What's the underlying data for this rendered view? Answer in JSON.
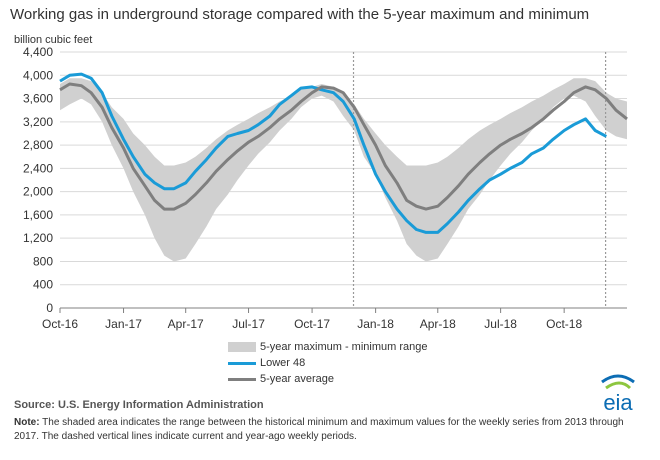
{
  "header": {
    "title": "Working gas in underground  storage compared with the 5-year maximum and minimum",
    "unit_label": "billion cubic feet"
  },
  "legend": {
    "band": "5-year maximum - minimum range",
    "lower48": "Lower 48",
    "avg": "5-year average"
  },
  "footer": {
    "source": "Source:  U.S. Energy Information Administration",
    "note_label": "Note:",
    "note_text": " The shaded area indicates the range between the historical minimum and maximum values for the weekly series from 2013 through 2017. The dashed vertical lines indicate current and year-ago weekly periods.",
    "logo_text": "eia"
  },
  "colors": {
    "band": "#d0d0d0",
    "lower48": "#1a9bd7",
    "avg": "#7f7f7f",
    "axis": "#808080",
    "grid": "#d9d9d9",
    "logo_blue": "#0c6db4",
    "logo_green": "#8dc63f"
  },
  "chart_data": {
    "type": "line",
    "title": "Working gas in underground  storage compared with the 5-year maximum and minimum",
    "ylabel": "billion cubic feet",
    "ylim": [
      0,
      4400
    ],
    "yticks": [
      0,
      400,
      800,
      1200,
      1600,
      2000,
      2400,
      2800,
      3200,
      3600,
      4000,
      4400
    ],
    "ytick_labels": [
      "0",
      "400",
      "800",
      "1,200",
      "1,600",
      "2,000",
      "2,400",
      "2,800",
      "3,200",
      "3,600",
      "4,000",
      "4,400"
    ],
    "xlim": [
      "2016-10-01",
      "2018-12-31"
    ],
    "xticks": [
      "2016-10-01",
      "2017-01-01",
      "2017-04-01",
      "2017-07-01",
      "2017-10-01",
      "2018-01-01",
      "2018-04-01",
      "2018-07-01",
      "2018-10-01"
    ],
    "xtick_labels": [
      "Oct-16",
      "Jan-17",
      "Apr-17",
      "Jul-17",
      "Oct-17",
      "Jan-18",
      "Apr-18",
      "Jul-18",
      "Oct-18"
    ],
    "grid": "horizontal",
    "legend_position": "bottom",
    "reference_lines": [
      "2017-11-30",
      "2018-11-30"
    ],
    "x": [
      "2016-10-01",
      "2016-10-15",
      "2016-11-01",
      "2016-11-15",
      "2016-12-01",
      "2016-12-15",
      "2017-01-01",
      "2017-01-15",
      "2017-02-01",
      "2017-02-15",
      "2017-03-01",
      "2017-03-15",
      "2017-04-01",
      "2017-04-15",
      "2017-05-01",
      "2017-05-15",
      "2017-06-01",
      "2017-06-15",
      "2017-07-01",
      "2017-07-15",
      "2017-08-01",
      "2017-08-15",
      "2017-09-01",
      "2017-09-15",
      "2017-10-01",
      "2017-10-15",
      "2017-11-01",
      "2017-11-15",
      "2017-12-01",
      "2017-12-15",
      "2018-01-01",
      "2018-01-15",
      "2018-02-01",
      "2018-02-15",
      "2018-03-01",
      "2018-03-15",
      "2018-04-01",
      "2018-04-15",
      "2018-05-01",
      "2018-05-15",
      "2018-06-01",
      "2018-06-15",
      "2018-07-01",
      "2018-07-15",
      "2018-08-01",
      "2018-08-15",
      "2018-09-01",
      "2018-09-15",
      "2018-10-01",
      "2018-10-15",
      "2018-11-01",
      "2018-11-15",
      "2018-12-01",
      "2018-12-15",
      "2018-12-31"
    ],
    "series": [
      {
        "name": "5-year maximum - minimum range",
        "role": "band",
        "upper": [
          3850,
          3950,
          3950,
          3900,
          3700,
          3450,
          3250,
          3000,
          2800,
          2600,
          2450,
          2450,
          2500,
          2600,
          2750,
          2900,
          3050,
          3150,
          3250,
          3350,
          3450,
          3550,
          3650,
          3750,
          3800,
          3850,
          3800,
          3700,
          3500,
          3250,
          3000,
          2800,
          2600,
          2450,
          2450,
          2450,
          2500,
          2600,
          2750,
          2900,
          3050,
          3150,
          3250,
          3350,
          3450,
          3550,
          3650,
          3750,
          3850,
          3950,
          3950,
          3900,
          3700,
          3600,
          3550
        ],
        "lower": [
          3400,
          3500,
          3600,
          3500,
          3200,
          2800,
          2400,
          2000,
          1600,
          1200,
          900,
          800,
          850,
          1100,
          1400,
          1700,
          1950,
          2200,
          2450,
          2650,
          2850,
          3050,
          3250,
          3450,
          3600,
          3650,
          3550,
          3300,
          3050,
          2600,
          2300,
          1900,
          1500,
          1100,
          900,
          800,
          850,
          1100,
          1400,
          1700,
          1950,
          2200,
          2450,
          2650,
          2850,
          3050,
          3250,
          3450,
          3600,
          3650,
          3550,
          3300,
          3050,
          2950,
          2900
        ]
      },
      {
        "name": "Lower 48",
        "values": [
          3900,
          4000,
          4020,
          3950,
          3700,
          3300,
          2900,
          2600,
          2300,
          2150,
          2050,
          2050,
          2150,
          2350,
          2550,
          2750,
          2950,
          3000,
          3050,
          3150,
          3300,
          3500,
          3650,
          3780,
          3800,
          3750,
          3700,
          3550,
          3250,
          2800,
          2300,
          2000,
          1700,
          1500,
          1350,
          1300,
          1300,
          1450,
          1650,
          1850,
          2050,
          2200,
          2300,
          2400,
          2500,
          2650,
          2750,
          2900,
          3050,
          3150,
          3250,
          3050,
          2950,
          null,
          null
        ]
      },
      {
        "name": "5-year average",
        "values": [
          3750,
          3850,
          3820,
          3700,
          3450,
          3100,
          2750,
          2400,
          2100,
          1850,
          1700,
          1700,
          1800,
          1950,
          2150,
          2350,
          2550,
          2700,
          2850,
          2950,
          3100,
          3250,
          3400,
          3550,
          3700,
          3800,
          3780,
          3700,
          3450,
          3150,
          2800,
          2450,
          2150,
          1850,
          1750,
          1700,
          1750,
          1900,
          2100,
          2300,
          2500,
          2650,
          2800,
          2900,
          3000,
          3100,
          3250,
          3400,
          3550,
          3700,
          3800,
          3750,
          3600,
          3400,
          3250
        ]
      }
    ]
  }
}
